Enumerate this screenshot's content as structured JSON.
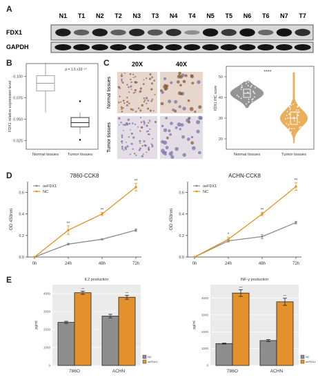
{
  "panels": {
    "A": {
      "label": "A",
      "lanes": [
        "N1",
        "T1",
        "N2",
        "T2",
        "N3",
        "T3",
        "N4",
        "T4",
        "N5",
        "T5",
        "N6",
        "T6",
        "N7",
        "T7"
      ],
      "rows": [
        "FDX1",
        "GAPDH"
      ],
      "fdx1_intensity": [
        0.9,
        0.55,
        0.9,
        0.55,
        0.85,
        0.6,
        0.8,
        0.3,
        0.95,
        0.75,
        0.95,
        0.5,
        0.95,
        0.8
      ],
      "gapdh_intensity": [
        0.95,
        0.95,
        0.95,
        0.95,
        0.95,
        0.95,
        0.95,
        0.95,
        0.95,
        0.95,
        0.95,
        0.95,
        0.95,
        0.95
      ]
    },
    "B": {
      "label": "B",
      "ylabel": "FDX1 relative expression level",
      "pvalue": "p = 1.5 x10⁻¹⁰",
      "yticks": [
        "0.100",
        "0.075",
        "0.050",
        "0.025"
      ],
      "groups": [
        "Normal tissues",
        "Tumor tissues"
      ]
    },
    "C": {
      "label": "C",
      "cols": [
        "20X",
        "40X"
      ],
      "rows": [
        "Normal tissues",
        "Tumor tissues"
      ],
      "ylabel": "FDX1 IHC score",
      "yticks": [
        "50",
        "40",
        "30",
        "20"
      ],
      "sig": "****",
      "groups": [
        "Normal tissues",
        "Tumor tissues"
      ]
    },
    "D": {
      "label": "D"
    },
    "E": {
      "label": "E"
    }
  },
  "chart_data": [
    {
      "type": "box",
      "title": "",
      "xlabel": "",
      "ylabel": "FDX1 relative expression level",
      "categories": [
        "Normal tissues",
        "Tumor tissues"
      ],
      "ylim": [
        0.015,
        0.115
      ],
      "boxes": [
        {
          "name": "Normal tissues",
          "min": 0.058,
          "q1": 0.083,
          "median": 0.092,
          "q3": 0.101,
          "max": 0.116,
          "outliers": []
        },
        {
          "name": "Tumor tissues",
          "min": 0.033,
          "q1": 0.041,
          "median": 0.046,
          "q3": 0.052,
          "max": 0.058,
          "outliers": [
            0.071,
            0.026
          ]
        }
      ]
    },
    {
      "type": "violin",
      "title": "",
      "ylabel": "FDX1 IHC score",
      "categories": [
        "Normal tissues",
        "Tumor tissues"
      ],
      "ylim": [
        15,
        55
      ],
      "series": [
        {
          "name": "Normal tissues",
          "color": "#8a8a8a",
          "median": 42,
          "q1": 40,
          "q3": 44,
          "min": 35,
          "max": 48
        },
        {
          "name": "Tumor tissues",
          "color": "#e8a74a",
          "median": 30,
          "q1": 27,
          "q3": 33,
          "min": 18,
          "max": 52
        }
      ]
    },
    {
      "type": "line",
      "title": "7860-CCK8",
      "xlabel": "",
      "ylabel": "OD 450nm",
      "categories": [
        "0h",
        "24h",
        "48h",
        "72h"
      ],
      "ylim": [
        0,
        0.7
      ],
      "yticks": [
        "0.0",
        "0.2",
        "0.4",
        "0.6"
      ],
      "legend": "top-left",
      "annotations": [
        "**",
        "**",
        "**"
      ],
      "series": [
        {
          "name": "oeFDX1",
          "color": "#8c8c8c",
          "values": [
            0.0,
            0.12,
            0.165,
            0.25
          ],
          "errors": [
            0,
            0.008,
            0.006,
            0.012
          ]
        },
        {
          "name": "NC",
          "color": "#e8901e",
          "values": [
            0.0,
            0.25,
            0.4,
            0.65
          ],
          "errors": [
            0,
            0.04,
            0.015,
            0.035
          ]
        }
      ]
    },
    {
      "type": "line",
      "title": "ACHN-CCK8",
      "xlabel": "",
      "ylabel": "OD 450nm",
      "categories": [
        "0h",
        "24h",
        "48h",
        "72h"
      ],
      "ylim": [
        0,
        0.7
      ],
      "yticks": [
        "0.0",
        "0.2",
        "0.4",
        "0.6"
      ],
      "legend": "top-left",
      "annotations": [
        "*",
        "**",
        "**"
      ],
      "series": [
        {
          "name": "oeFDX1",
          "color": "#8c8c8c",
          "values": [
            0.0,
            0.15,
            0.19,
            0.32
          ],
          "errors": [
            0,
            0.01,
            0.02,
            0.012
          ]
        },
        {
          "name": "NC",
          "color": "#e8901e",
          "values": [
            0.0,
            0.165,
            0.4,
            0.655
          ],
          "errors": [
            0,
            0.02,
            0.015,
            0.035
          ]
        }
      ]
    },
    {
      "type": "bar",
      "title": "IL2 production",
      "xlabel": "",
      "ylabel": "pg/ml",
      "categories": [
        "786O",
        "ACHN"
      ],
      "ylim": [
        0,
        4500
      ],
      "yticks": [
        "0",
        "1000",
        "2000",
        "3000",
        "4000"
      ],
      "legend": "bottom-right",
      "annotations": [
        "***",
        "***"
      ],
      "series": [
        {
          "name": "NC",
          "color": "#8e8e8e",
          "values": [
            2400,
            2750
          ],
          "errors": [
            60,
            100
          ]
        },
        {
          "name": "oeFDX1",
          "color": "#e2912c",
          "values": [
            4050,
            3800
          ],
          "errors": [
            90,
            110
          ]
        }
      ]
    },
    {
      "type": "bar",
      "title": "INF-γ production",
      "xlabel": "",
      "ylabel": "pg/ml",
      "categories": [
        "786O",
        "ACHN"
      ],
      "ylim": [
        0,
        4800
      ],
      "yticks": [
        "0",
        "1000",
        "2000",
        "3000",
        "4000"
      ],
      "legend": "bottom-right",
      "annotations": [
        "***",
        "***"
      ],
      "series": [
        {
          "name": "NC",
          "color": "#8e8e8e",
          "values": [
            1300,
            1480
          ],
          "errors": [
            30,
            60
          ]
        },
        {
          "name": "oeFDX1",
          "color": "#e2912c",
          "values": [
            4300,
            3780
          ],
          "errors": [
            200,
            210
          ]
        }
      ]
    }
  ]
}
